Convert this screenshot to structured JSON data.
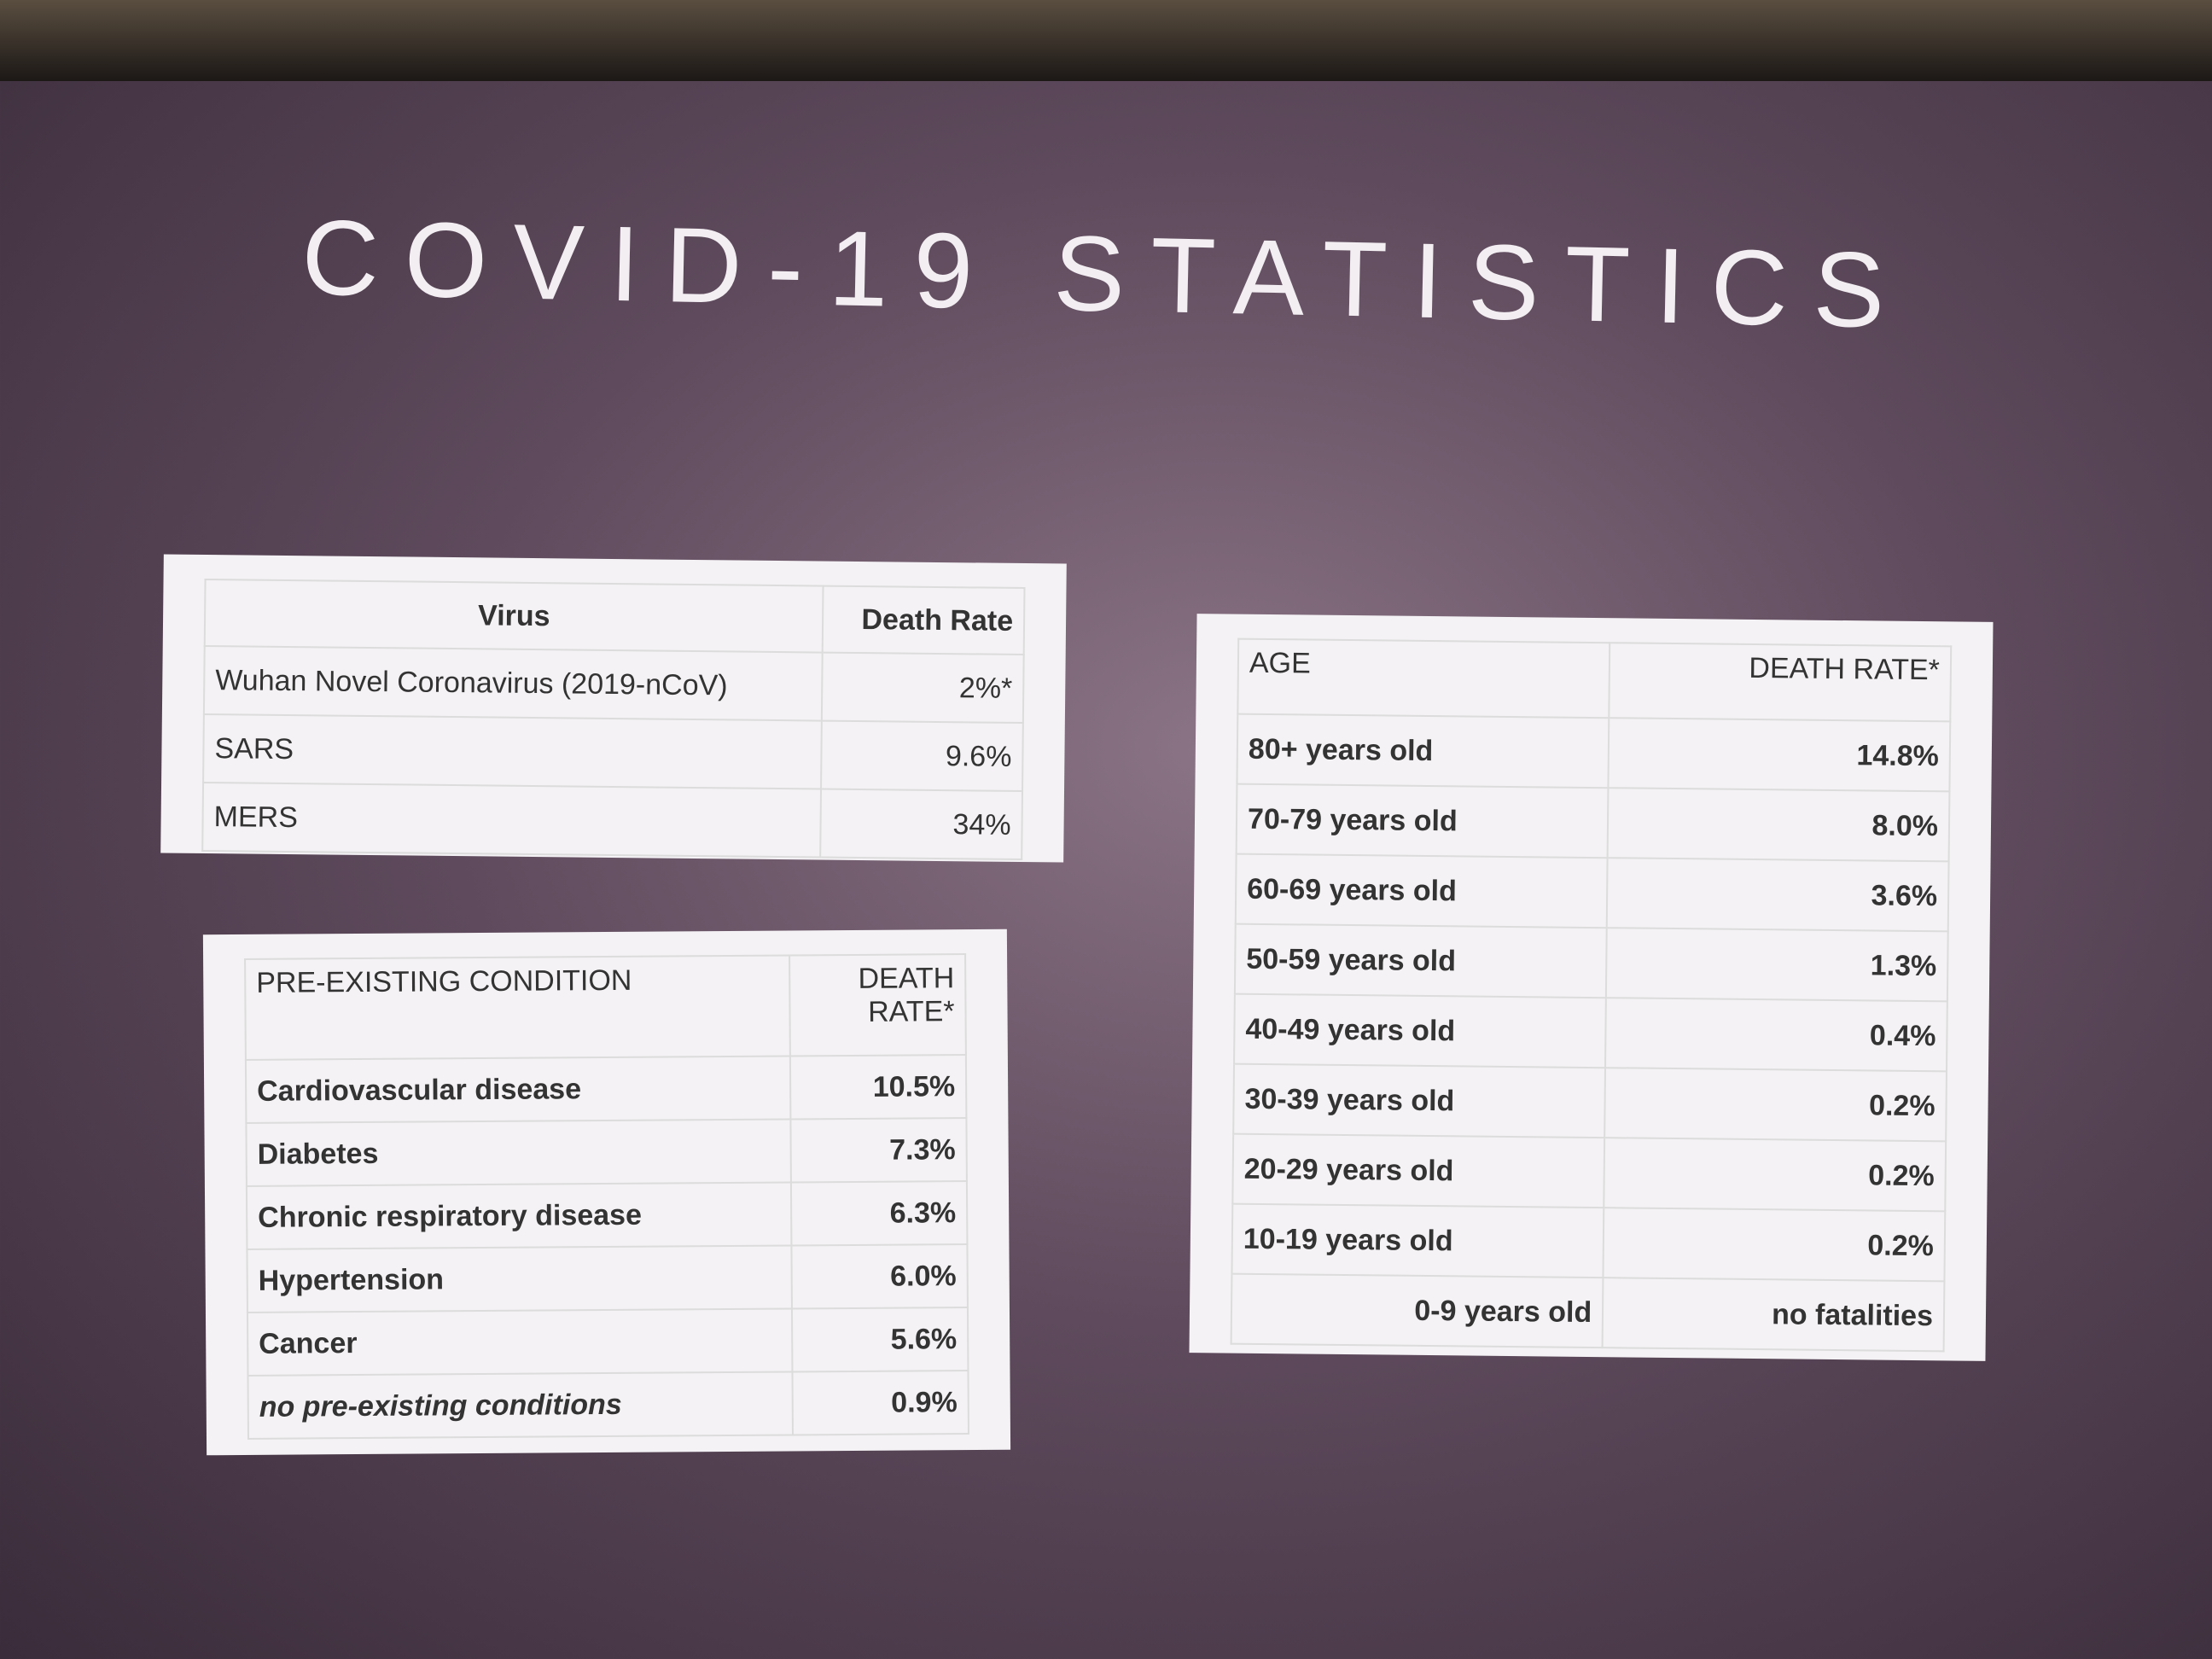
{
  "title": "COVID-19 STATISTICS",
  "tables": [
    {
      "header": [
        "Virus",
        "Death Rate"
      ],
      "rows": [
        [
          "Wuhan Novel Coronavirus (2019-nCoV)",
          "2%*"
        ],
        [
          "SARS",
          "9.6%"
        ],
        [
          "MERS",
          "34%"
        ]
      ]
    },
    {
      "header": [
        "PRE-EXISTING CONDITION",
        "DEATH RATE*"
      ],
      "rows": [
        [
          "Cardiovascular disease",
          "10.5%"
        ],
        [
          "Diabetes",
          "7.3%"
        ],
        [
          "Chronic respiratory disease",
          "6.3%"
        ],
        [
          "Hypertension",
          "6.0%"
        ],
        [
          "Cancer",
          "5.6%"
        ],
        [
          "no pre-existing conditions",
          "0.9%"
        ]
      ]
    },
    {
      "header": [
        "AGE",
        "DEATH RATE*"
      ],
      "rows": [
        [
          "80+ years old",
          "14.8%"
        ],
        [
          "70-79 years old",
          "8.0%"
        ],
        [
          "60-69 years old",
          "3.6%"
        ],
        [
          "50-59 years old",
          "1.3%"
        ],
        [
          "40-49 years old",
          "0.4%"
        ],
        [
          "30-39 years old",
          "0.2%"
        ],
        [
          "20-29 years old",
          "0.2%"
        ],
        [
          "10-19 years old",
          "0.2%"
        ],
        [
          "0-9 years old",
          "no fatalities"
        ]
      ]
    }
  ]
}
